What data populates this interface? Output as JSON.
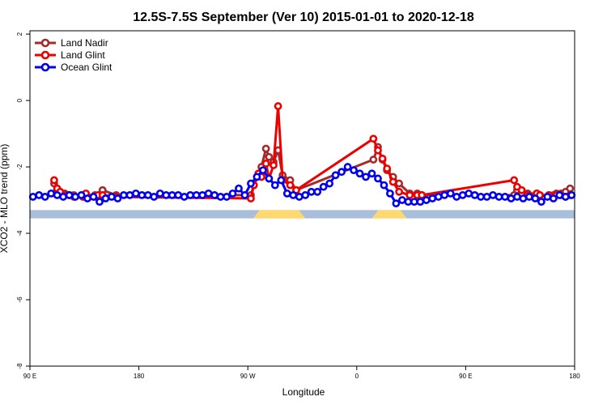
{
  "chart_data": {
    "type": "line",
    "title": "12.5S-7.5S September (Ver 10)   2015-01-01 to 2020-12-18",
    "xlabel": "Longitude",
    "ylabel": "XCO2 - MLO trend (ppm)",
    "xlim": [
      90,
      450
    ],
    "ylim": [
      -8,
      2.1
    ],
    "x_ticks": [
      {
        "value": 90,
        "label": "90 E"
      },
      {
        "value": 162,
        "label": "180"
      },
      {
        "value": 234,
        "label": "90 W"
      },
      {
        "value": 306,
        "label": "0"
      },
      {
        "value": 378,
        "label": "90 E"
      },
      {
        "value": 450,
        "label": "180"
      }
    ],
    "y_ticks": [
      {
        "value": 2,
        "label": "2"
      },
      {
        "value": 0,
        "label": "0"
      },
      {
        "value": -2,
        "label": "-2"
      },
      {
        "value": -4,
        "label": "-4"
      },
      {
        "value": -6,
        "label": "-6"
      },
      {
        "value": -8,
        "label": "-8"
      }
    ],
    "grid": false,
    "legend_position": "top-left",
    "land_band": {
      "y_top": -3.3,
      "y_bottom": -3.55,
      "ocean_color": "#a9bedb",
      "land_color": "#ffd970",
      "land_segments": [
        [
          237.5,
          272
        ],
        [
          316,
          339
        ]
      ]
    },
    "series": [
      {
        "name": "Land Nadir",
        "color": "#a52a2a",
        "x": [
          106,
          108,
          110,
          113,
          116,
          119,
          125,
          127,
          133,
          135,
          138,
          147,
          236,
          238,
          241,
          243,
          246,
          248,
          251,
          254,
          257,
          262,
          266,
          317,
          320,
          323,
          326,
          330,
          334,
          341,
          346,
          349,
          410,
          412,
          415,
          419,
          425,
          427,
          433,
          436,
          438,
          441,
          444,
          447
        ],
        "y": [
          -2.5,
          -2.7,
          -2.75,
          -2.8,
          -2.85,
          -2.85,
          -2.85,
          -2.9,
          -2.85,
          -2.9,
          -2.7,
          -2.85,
          -2.85,
          -2.55,
          -2.25,
          -2.0,
          -1.45,
          -1.7,
          -1.85,
          -1.5,
          -2.25,
          -2.4,
          -2.7,
          -1.78,
          -1.4,
          -1.78,
          -2.1,
          -2.3,
          -2.5,
          -2.8,
          -2.8,
          -2.85,
          -2.85,
          -2.7,
          -2.8,
          -2.8,
          -2.8,
          -2.85,
          -2.85,
          -2.85,
          -2.8,
          -2.8,
          -2.75,
          -2.65
        ]
      },
      {
        "name": "Land Glint",
        "color": "#ee0000",
        "x": [
          106,
          108,
          110,
          113,
          116,
          119,
          125,
          127,
          133,
          135,
          138,
          147,
          236,
          238,
          241,
          243,
          246,
          248,
          251,
          254,
          257,
          262,
          266,
          317,
          320,
          323,
          326,
          330,
          334,
          341,
          346,
          349,
          410,
          412,
          415,
          419,
          425,
          427,
          433,
          436,
          438,
          441,
          444,
          447
        ],
        "y": [
          -2.4,
          -2.65,
          -2.75,
          -2.85,
          -2.85,
          -2.9,
          -2.9,
          -2.8,
          -2.9,
          -2.85,
          -2.85,
          -2.9,
          -2.95,
          -2.55,
          -2.2,
          -2.3,
          -1.9,
          -2.35,
          -1.95,
          -0.17,
          -2.4,
          -2.55,
          -2.7,
          -1.15,
          -1.5,
          -1.75,
          -2.05,
          -2.45,
          -2.75,
          -2.85,
          -2.85,
          -2.85,
          -2.4,
          -2.6,
          -2.7,
          -2.85,
          -2.8,
          -2.85,
          -2.85,
          -2.9,
          -2.85,
          -2.85,
          -2.9,
          -2.85
        ]
      },
      {
        "name": "Ocean Glint",
        "color": "#0000ee",
        "x": [
          92,
          96,
          100,
          104,
          108,
          112,
          116,
          120,
          124,
          128,
          132,
          136,
          140,
          144,
          148,
          152,
          156,
          160,
          164,
          168,
          172,
          176,
          180,
          184,
          188,
          192,
          196,
          200,
          204,
          208,
          212,
          216,
          220,
          224,
          228,
          232,
          236,
          240,
          244,
          248,
          252,
          256,
          260,
          264,
          268,
          272,
          276,
          280,
          284,
          288,
          292,
          296,
          300,
          304,
          308,
          312,
          316,
          320,
          324,
          328,
          332,
          336,
          340,
          344,
          348,
          352,
          356,
          360,
          364,
          368,
          372,
          376,
          380,
          384,
          388,
          392,
          396,
          400,
          404,
          408,
          412,
          416,
          420,
          424,
          428,
          432,
          436,
          440,
          444,
          448
        ],
        "y": [
          -2.9,
          -2.85,
          -2.9,
          -2.8,
          -2.85,
          -2.9,
          -2.85,
          -2.9,
          -2.85,
          -2.95,
          -2.9,
          -3.05,
          -2.95,
          -2.9,
          -2.95,
          -2.85,
          -2.85,
          -2.8,
          -2.85,
          -2.85,
          -2.9,
          -2.8,
          -2.85,
          -2.85,
          -2.85,
          -2.9,
          -2.85,
          -2.85,
          -2.85,
          -2.8,
          -2.85,
          -2.9,
          -2.9,
          -2.8,
          -2.65,
          -2.85,
          -2.5,
          -2.3,
          -2.1,
          -2.35,
          -2.55,
          -2.4,
          -2.8,
          -2.85,
          -2.9,
          -2.85,
          -2.75,
          -2.75,
          -2.6,
          -2.5,
          -2.25,
          -2.15,
          -2.0,
          -2.1,
          -2.2,
          -2.3,
          -2.2,
          -2.35,
          -2.55,
          -2.8,
          -3.1,
          -3.0,
          -3.05,
          -3.05,
          -3.05,
          -3.0,
          -2.95,
          -2.9,
          -2.85,
          -2.8,
          -2.9,
          -2.85,
          -2.8,
          -2.85,
          -2.9,
          -2.9,
          -2.85,
          -2.9,
          -2.9,
          -2.95,
          -2.9,
          -2.95,
          -2.9,
          -2.95,
          -3.05,
          -2.9,
          -2.95,
          -2.85,
          -2.9,
          -2.85
        ]
      }
    ]
  }
}
